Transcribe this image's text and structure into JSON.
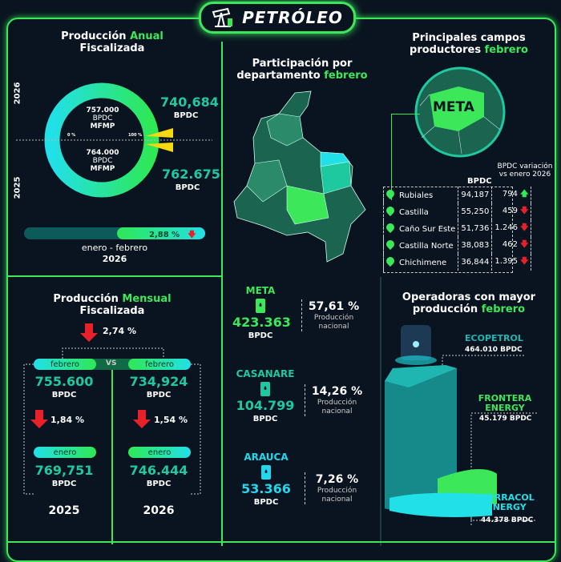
{
  "header": {
    "title": "PETRÓLEO",
    "icon": "oil-pump-icon"
  },
  "annual": {
    "title_a": "Producción ",
    "title_b": "Anual",
    "title_c": "Fiscalizada",
    "year_top": "2026",
    "year_bottom": "2025",
    "top_target": "757.000",
    "top_unit": "BPDC",
    "top_label": "MFMP",
    "bottom_target": "764.000",
    "bottom_unit": "BPDC",
    "bottom_label": "MFMP",
    "zero": "0 %",
    "hundred": "100 %",
    "top_value": "740,684",
    "top_value_unit": "BPDC",
    "bottom_value": "762.675",
    "bottom_value_unit": "BPDC",
    "change": "2,88 %",
    "change_direction": "down",
    "period": "enero - febrero",
    "period_year": "2026"
  },
  "monthly": {
    "title_a": "Producción ",
    "title_b": "Mensual",
    "title_c": "Fiscalizada",
    "change": "2,74 %",
    "vs": "VS",
    "left": {
      "month": "febrero",
      "value": "755.600",
      "unit": "BPDC",
      "change": "1,84 %",
      "prev_month": "enero",
      "prev_value": "769,751",
      "prev_unit": "BPDC",
      "year": "2025"
    },
    "right": {
      "month": "febrero",
      "value": "734,924",
      "unit": "BPDC",
      "change": "1,54 %",
      "prev_month": "enero",
      "prev_value": "746.444",
      "prev_unit": "BPDC",
      "year": "2026"
    }
  },
  "departments": {
    "title_a": "Participación por",
    "title_b": "departamento ",
    "title_c": "febrero",
    "items": [
      {
        "name": "META",
        "value": "423.363",
        "unit": "BPDC",
        "pct": "57,61 %",
        "label": "Producción nacional",
        "color": "#3ce85a"
      },
      {
        "name": "CASANARE",
        "value": "104.799",
        "unit": "BPDC",
        "pct": "14,26 %",
        "label": "Producción nacional",
        "color": "#1fc9a0"
      },
      {
        "name": "ARAUCA",
        "value": "53.366",
        "unit": "BPDC",
        "pct": "7,26 %",
        "label": "Producción nacional",
        "color": "#22d8ef"
      }
    ]
  },
  "fields": {
    "title_a": "Principales campos",
    "title_b": "productores ",
    "title_c": "febrero",
    "map_label": "META",
    "col_bpdc": "BPDC",
    "col_var": "BPDC variación vs enero 2026",
    "rows": [
      {
        "rank": "1",
        "name": "Rubiales",
        "bpdc": "94,187",
        "var": "794",
        "dir": "up"
      },
      {
        "rank": "2",
        "name": "Castilla",
        "bpdc": "55,250",
        "var": "459",
        "dir": "down"
      },
      {
        "rank": "3",
        "name": "Caño Sur Este",
        "bpdc": "51,736",
        "var": "1.246",
        "dir": "down"
      },
      {
        "rank": "4",
        "name": "Castilla Norte",
        "bpdc": "38,083",
        "var": "462",
        "dir": "down"
      },
      {
        "rank": "5",
        "name": "Chichimene",
        "bpdc": "36,844",
        "var": "1.395",
        "dir": "down"
      }
    ]
  },
  "operators": {
    "title_a": "Operadoras con mayor",
    "title_b": "producción ",
    "title_c": "febrero",
    "items": [
      {
        "name": "ECOPETROL",
        "value": "464.010 BPDC",
        "color": "#1fb5b0"
      },
      {
        "name": "FRONTERA ENERGY",
        "value": "45.179 BPDC",
        "color": "#3ce85a"
      },
      {
        "name": "SIERRACOL ENERGY",
        "value": "44.378 BPDC",
        "color": "#22e0e8"
      }
    ]
  },
  "chart_data": [
    {
      "type": "pie",
      "categories": [
        "ECOPETROL",
        "FRONTERA ENERGY",
        "SIERRACOL ENERGY"
      ],
      "values": [
        464010,
        45179,
        44378
      ],
      "unit": "BPDC"
    },
    {
      "type": "donut",
      "series": [
        {
          "name": "2026",
          "value": 740684,
          "target": 757000
        },
        {
          "name": "2025",
          "value": 762675,
          "target": 764000
        }
      ],
      "unit": "BPDC"
    }
  ]
}
